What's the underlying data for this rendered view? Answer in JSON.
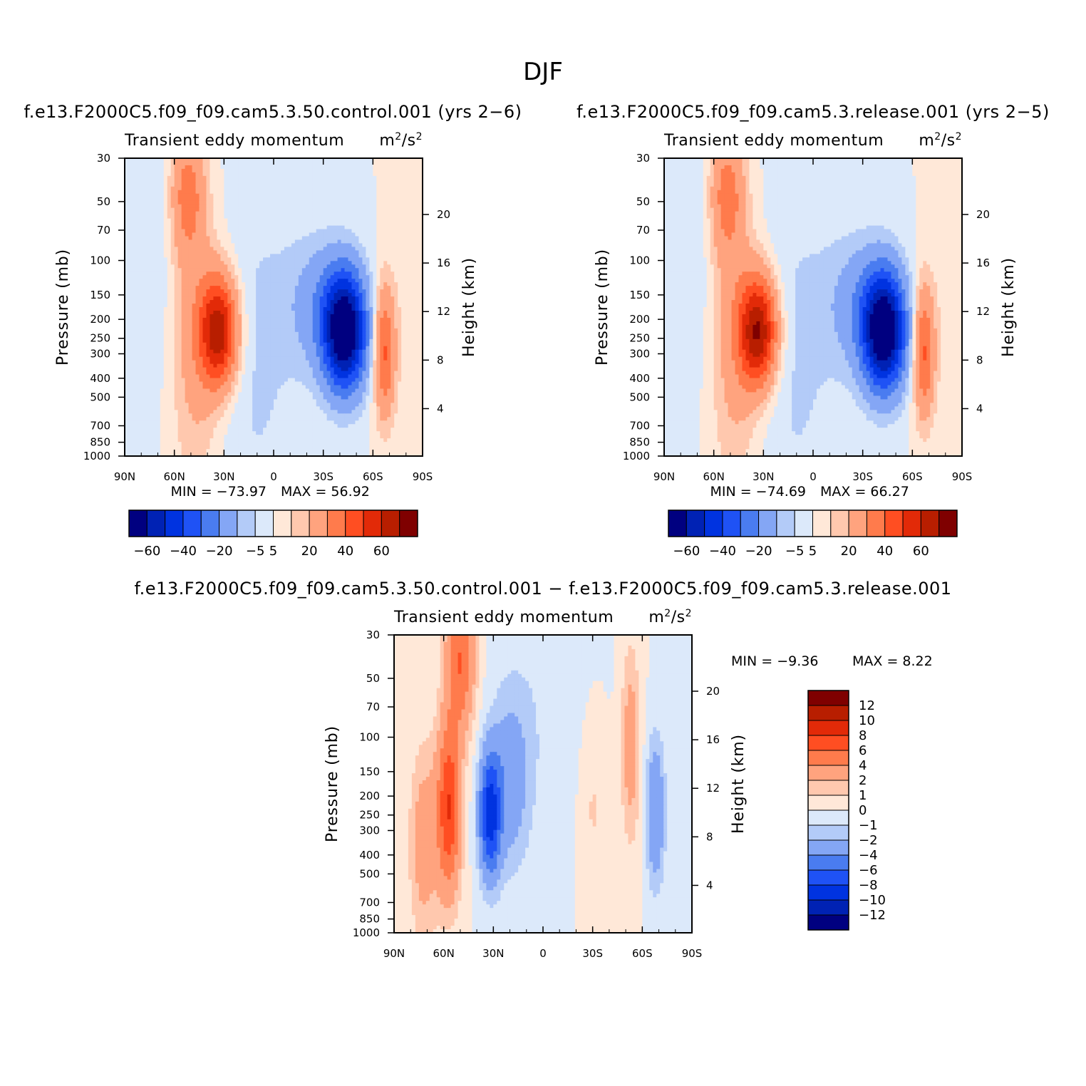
{
  "figure": {
    "title": "DJF",
    "palette_main": [
      "#000080",
      "#0022B4",
      "#0033E0",
      "#1F52F5",
      "#4A7CF0",
      "#84A6F5",
      "#B3CBF8",
      "#DCE9FA",
      "#FFE8D8",
      "#FFC8AE",
      "#FFA37E",
      "#FF7B4C",
      "#FF4E22",
      "#E22A08",
      "#B81E00",
      "#7F0000"
    ],
    "palette_diff": [
      "#000080",
      "#0022B4",
      "#0033E0",
      "#1F52F5",
      "#4A7CF0",
      "#84A6F5",
      "#B3CBF8",
      "#DCE9FA",
      "#FFE8D8",
      "#FFC8AE",
      "#FFA37E",
      "#FF7B4C",
      "#FF4E22",
      "#E22A08",
      "#B81E00",
      "#7F0000"
    ]
  },
  "chart_data": [
    {
      "type": "contour",
      "case_title": "f.e13.F2000C5.f09_f09.cam5.3.50.control.001  (yrs  2-6)",
      "variable": "Transient  eddy  momentum",
      "units_base": "m",
      "units_mid": "/s",
      "units_sup": "2",
      "xlabel": "",
      "ylabel": "Pressure  (mb)",
      "ylabel_right": "Height  (km)",
      "x_ticks": [
        "90N",
        "60N",
        "30N",
        "0",
        "30S",
        "60S",
        "90S"
      ],
      "y_ticks": [
        "30",
        "50",
        "70",
        "100",
        "150",
        "200",
        "250",
        "300",
        "400",
        "500",
        "700",
        "850",
        "1000"
      ],
      "y_ticks_right": [
        "20",
        "16",
        "12",
        "8",
        "4"
      ],
      "ylim": [
        1000,
        30
      ],
      "min_label": "MIN  =  -73.97",
      "max_label": "MAX  =    56.92",
      "colorbar_labels": [
        "-60",
        "-40",
        "-20",
        "-5",
        "5",
        "20",
        "40",
        "60"
      ],
      "levels": [
        -60,
        -50,
        -40,
        -30,
        -20,
        -10,
        -5,
        0,
        5,
        10,
        20,
        30,
        40,
        50,
        60
      ],
      "field_min": -73.97,
      "field_max": 56.92
    },
    {
      "type": "contour",
      "case_title": "f.e13.F2000C5.f09_f09.cam5.3.release.001  (yrs  2-5)",
      "variable": "Transient  eddy  momentum",
      "units_base": "m",
      "units_mid": "/s",
      "units_sup": "2",
      "xlabel": "",
      "ylabel": "Pressure  (mb)",
      "ylabel_right": "Height  (km)",
      "x_ticks": [
        "90N",
        "60N",
        "30N",
        "0",
        "30S",
        "60S",
        "90S"
      ],
      "y_ticks": [
        "30",
        "50",
        "70",
        "100",
        "150",
        "200",
        "250",
        "300",
        "400",
        "500",
        "700",
        "850",
        "1000"
      ],
      "y_ticks_right": [
        "20",
        "16",
        "12",
        "8",
        "4"
      ],
      "ylim": [
        1000,
        30
      ],
      "min_label": "MIN  =  -74.69",
      "max_label": "MAX  =    66.27",
      "colorbar_labels": [
        "-60",
        "-40",
        "-20",
        "-5",
        "5",
        "20",
        "40",
        "60"
      ],
      "levels": [
        -60,
        -50,
        -40,
        -30,
        -20,
        -10,
        -5,
        0,
        5,
        10,
        20,
        30,
        40,
        50,
        60
      ],
      "field_min": -74.69,
      "field_max": 66.27
    },
    {
      "type": "contour",
      "case_title": "f.e13.F2000C5.f09_f09.cam5.3.50.control.001  -  f.e13.F2000C5.f09_f09.cam5.3.release.001",
      "variable": "Transient  eddy  momentum",
      "units_base": "m",
      "units_mid": "/s",
      "units_sup": "2",
      "xlabel": "",
      "ylabel": "Pressure  (mb)",
      "ylabel_right": "Height  (km)",
      "x_ticks": [
        "90N",
        "60N",
        "30N",
        "0",
        "30S",
        "60S",
        "90S"
      ],
      "y_ticks": [
        "30",
        "50",
        "70",
        "100",
        "150",
        "200",
        "250",
        "300",
        "400",
        "500",
        "700",
        "850",
        "1000"
      ],
      "y_ticks_right": [
        "20",
        "16",
        "12",
        "8",
        "4"
      ],
      "ylim": [
        1000,
        30
      ],
      "min_label": "MIN  =    -9.36",
      "max_label": "MAX  =      8.22",
      "colorbar_labels": [
        "12",
        "10",
        "8",
        "6",
        "4",
        "2",
        "1",
        "0",
        "-1",
        "-2",
        "-4",
        "-6",
        "-8",
        "-10",
        "-12"
      ],
      "levels": [
        -12,
        -10,
        -8,
        -6,
        -4,
        -2,
        -1,
        0,
        1,
        2,
        4,
        6,
        8,
        10,
        12
      ],
      "field_min": -9.36,
      "field_max": 8.22
    }
  ]
}
